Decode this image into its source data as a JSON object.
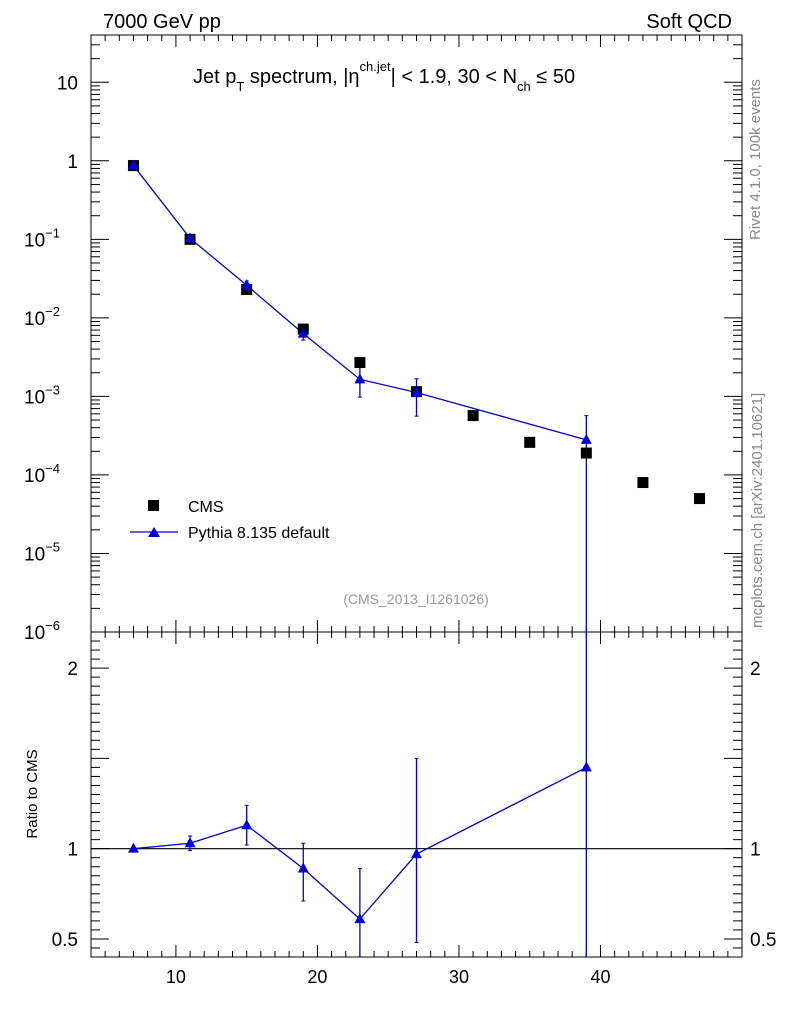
{
  "header": {
    "left": "7000 GeV pp",
    "right": "Soft QCD"
  },
  "side_texts": {
    "rivet": "Rivet 4.1.0,  100k events",
    "mcplots": "mcplots.cern.ch [arXiv:2401.10621]"
  },
  "title": {
    "part1": "Jet p",
    "sub1": "T",
    "part2": " spectrum, |η",
    "sup1": "ch.jet",
    "part3": "| < 1.9, 30 < N",
    "sub2": "ch",
    "part4": " ≤ 50"
  },
  "watermark": "(CMS_2013_I1261026)",
  "legend": {
    "data_label": "CMS",
    "mc_label": "Pythia 8.135 default"
  },
  "colors": {
    "data": "#000000",
    "mc": "#0000dd",
    "axis": "#000000",
    "watermark": "#999999",
    "sidetext": "#888888"
  },
  "chart_data": [
    {
      "type": "scatter",
      "yscale": "log",
      "xlim": [
        4,
        50
      ],
      "ylim": [
        1e-06,
        40
      ],
      "y_ticks": [
        {
          "value": 10,
          "label": "10"
        },
        {
          "value": 1,
          "label": "1"
        },
        {
          "value": 0.1,
          "label": "10",
          "exp": "−1"
        },
        {
          "value": 0.01,
          "label": "10",
          "exp": "−2"
        },
        {
          "value": 0.001,
          "label": "10",
          "exp": "−3"
        },
        {
          "value": 0.0001,
          "label": "10",
          "exp": "−4"
        },
        {
          "value": 1e-05,
          "label": "10",
          "exp": "−5"
        },
        {
          "value": 1e-06,
          "label": "10",
          "exp": "−6"
        }
      ],
      "series": [
        {
          "name": "CMS",
          "x": [
            7,
            11,
            15,
            19,
            23,
            27,
            31,
            35,
            39,
            43,
            47
          ],
          "y": [
            0.87,
            0.1,
            0.023,
            0.0072,
            0.0027,
            0.00115,
            0.00057,
            0.00026,
            0.00019,
            8e-05,
            5e-05
          ]
        },
        {
          "name": "Pythia 8.135 default",
          "x": [
            7,
            11,
            15,
            19,
            23,
            27,
            39
          ],
          "y": [
            0.87,
            0.103,
            0.026,
            0.0063,
            0.00165,
            0.00112,
            0.00028
          ],
          "yerr_low": [
            0.85,
            0.097,
            0.0225,
            0.0052,
            0.00098,
            0.00056,
            1e-09
          ],
          "yerr_high": [
            0.89,
            0.109,
            0.0295,
            0.0074,
            0.00235,
            0.00168,
            0.00057
          ]
        }
      ]
    },
    {
      "type": "line",
      "ylabel": "Ratio to CMS",
      "xlim": [
        4,
        50
      ],
      "ylim": [
        0.4,
        2.2
      ],
      "x_ticks": [
        10,
        20,
        30,
        40
      ],
      "y_ticks": [
        {
          "value": 0.5,
          "label": "0.5"
        },
        {
          "value": 1,
          "label": "1"
        },
        {
          "value": 2,
          "label": "2"
        }
      ],
      "reference": 1,
      "series": [
        {
          "name": "Pythia 8.135 default / CMS",
          "x": [
            7,
            11,
            15,
            19,
            23,
            27,
            39
          ],
          "y": [
            1.0,
            1.03,
            1.13,
            0.89,
            0.61,
            0.97,
            1.45
          ],
          "yerr_low": [
            0.99,
            0.99,
            1.02,
            0.71,
            0.3,
            0.48,
            0.2
          ],
          "yerr_high": [
            1.01,
            1.07,
            1.24,
            1.03,
            0.89,
            1.5,
            2.3
          ]
        }
      ]
    }
  ]
}
